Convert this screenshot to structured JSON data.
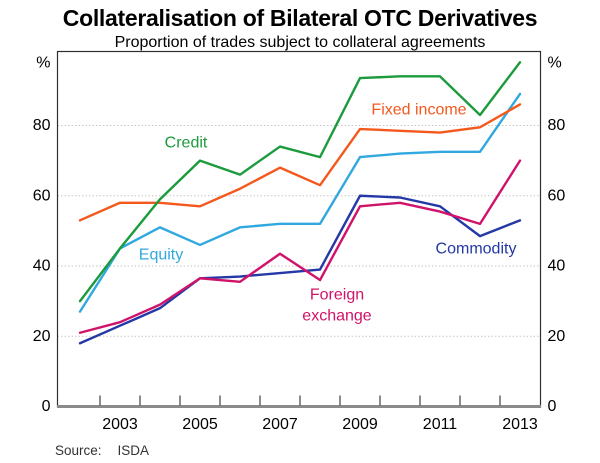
{
  "title": "Collateralisation of Bilateral OTC Derivatives",
  "subtitle": "Proportion of trades subject to collateral agreements",
  "source": {
    "label": "Source:",
    "value": "ISDA"
  },
  "chart_data": {
    "type": "line",
    "x": [
      2002,
      2003,
      2004,
      2005,
      2006,
      2007,
      2008,
      2009,
      2010,
      2011,
      2012,
      2013
    ],
    "series": [
      {
        "name": "Credit",
        "color": "#1C9B3D",
        "values": [
          30,
          45,
          59,
          70,
          66,
          74,
          71,
          93.5,
          94,
          94,
          83,
          98
        ],
        "label": {
          "lines": [
            {
              "text": "Credit",
              "x": 186,
              "y": 143
            }
          ]
        }
      },
      {
        "name": "Fixed income",
        "color": "#F4581D",
        "values": [
          53,
          58,
          58,
          57,
          62,
          68,
          63,
          79,
          78.5,
          78,
          79.5,
          86
        ],
        "label": {
          "lines": [
            {
              "text": "Fixed income",
              "x": 419,
              "y": 110
            }
          ]
        }
      },
      {
        "name": "Equity",
        "color": "#31A8DF",
        "values": [
          27,
          45,
          51,
          46,
          51,
          52,
          52,
          71,
          72,
          72.5,
          72.5,
          89
        ],
        "label": {
          "lines": [
            {
              "text": "Equity",
              "x": 161,
              "y": 255
            }
          ]
        }
      },
      {
        "name": "Foreign exchange",
        "color": "#D0136A",
        "values": [
          21,
          24,
          29,
          36.5,
          35.5,
          43.5,
          36,
          57,
          58,
          55.5,
          52,
          70
        ],
        "label": {
          "lines": [
            {
              "text": "Foreign",
              "x": 337,
              "y": 295
            },
            {
              "text": "exchange",
              "x": 337,
              "y": 316
            }
          ]
        }
      },
      {
        "name": "Commodity",
        "color": "#2438A6",
        "values": [
          18,
          23,
          28,
          36.5,
          37,
          38,
          39,
          60,
          59.5,
          57,
          48.5,
          53
        ],
        "label": {
          "lines": [
            {
              "text": "Commodity",
              "x": 476,
              "y": 249
            }
          ]
        }
      }
    ],
    "y_axis": {
      "unit": "%",
      "ticks": [
        0,
        20,
        40,
        60,
        80
      ],
      "gridlines": [
        20,
        40,
        60,
        80
      ],
      "range": [
        0,
        101
      ]
    },
    "x_axis": {
      "labeled_years": [
        2003,
        2005,
        2007,
        2009,
        2011,
        2013
      ],
      "range_years": [
        2002,
        2013
      ]
    },
    "grid": true,
    "legend": "inline-labels"
  }
}
